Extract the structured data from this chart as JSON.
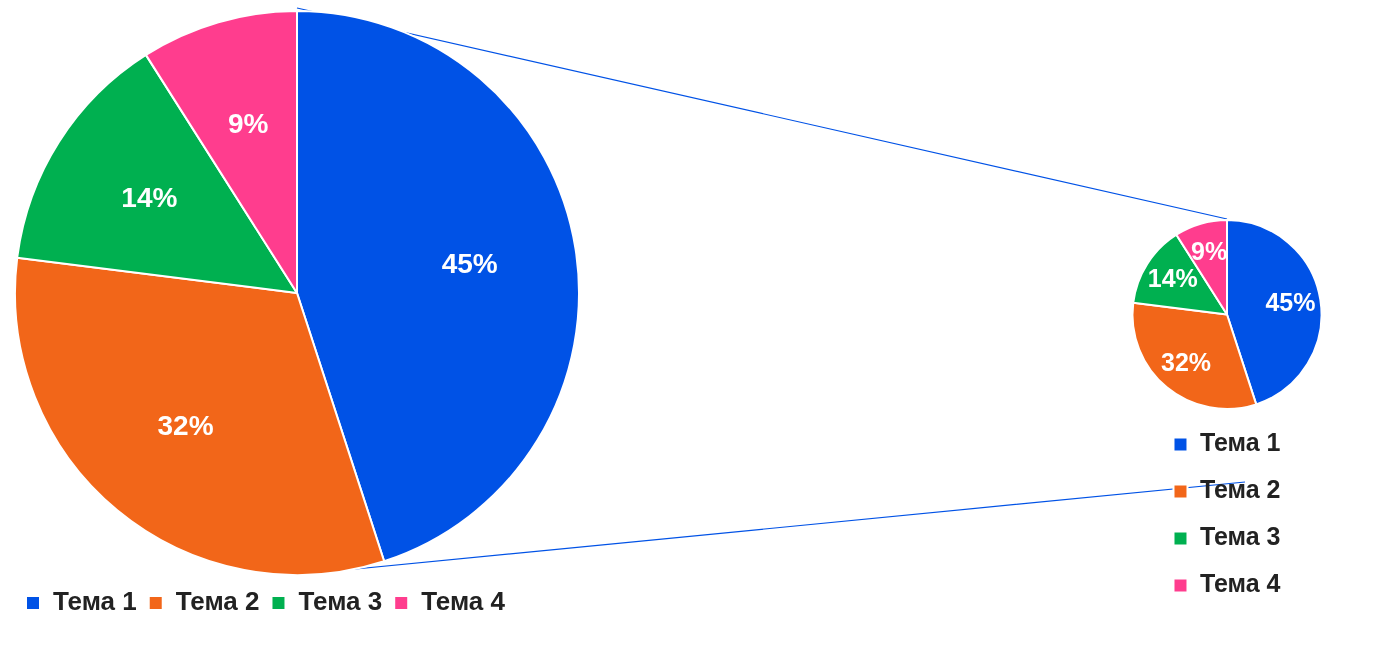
{
  "chart_data": [
    {
      "type": "pie",
      "categories": [
        "Тема 1",
        "Тема 2",
        "Тема 3",
        "Тема 4"
      ],
      "values": [
        45,
        32,
        14,
        9
      ],
      "value_labels": [
        "45%",
        "32%",
        "14%",
        "9%"
      ],
      "colors": [
        "#0052e6",
        "#f26619",
        "#00b050",
        "#ff3d8e"
      ],
      "legend": "bottom"
    },
    {
      "type": "pie",
      "categories": [
        "Тема 1",
        "Тема 2",
        "Тема 3",
        "Тема 4"
      ],
      "values": [
        45,
        32,
        14,
        9
      ],
      "value_labels": [
        "45%",
        "32%",
        "14%",
        "9%"
      ],
      "colors": [
        "#0052e6",
        "#f26619",
        "#00b050",
        "#ff3d8e"
      ],
      "legend": "bottom"
    }
  ]
}
